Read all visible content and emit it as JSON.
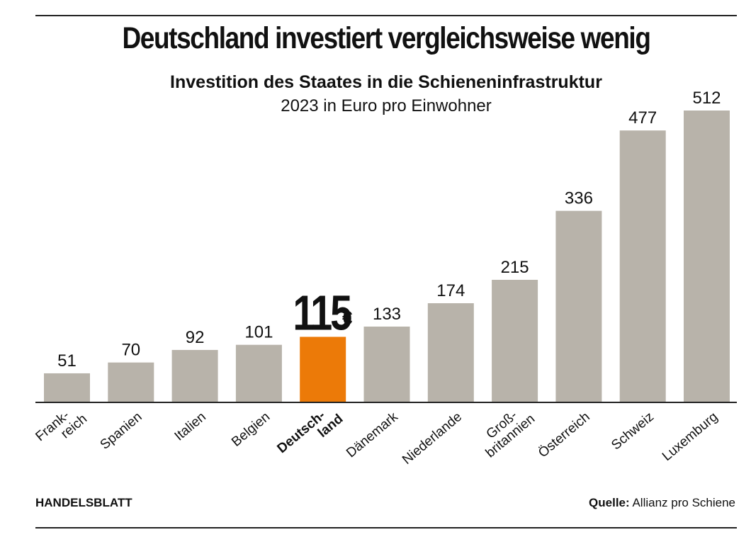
{
  "header": {
    "title": "Deutschland investiert vergleichsweise wenig",
    "subtitle": "Investition des Staates in die Schieneninfrastruktur",
    "unit_line": "2023 in Euro pro Einwohner"
  },
  "footer": {
    "brand": "HANDELSBLATT",
    "source_label": "Quelle:",
    "source_text": "Allianz pro Schiene"
  },
  "colors": {
    "bar": "#b8b3aa",
    "highlight": "#ec7a08",
    "axis": "#222222",
    "text": "#111111"
  },
  "chart_data": {
    "type": "bar",
    "categories": [
      [
        "Frank-",
        "reich"
      ],
      [
        "Spanien"
      ],
      [
        "Italien"
      ],
      [
        "Belgien"
      ],
      [
        "Deutsch-",
        "land"
      ],
      [
        "Dänemark"
      ],
      [
        "Niederlande"
      ],
      [
        "Groß-",
        "britannien"
      ],
      [
        "Österreich"
      ],
      [
        "Schweiz"
      ],
      [
        "Luxemburg"
      ]
    ],
    "values": [
      51,
      70,
      92,
      101,
      115,
      133,
      174,
      215,
      336,
      477,
      512
    ],
    "value_labels": [
      "51",
      "70",
      "92",
      "101",
      "115",
      "133",
      "174",
      "215",
      "336",
      "477",
      "512"
    ],
    "highlight_index": 4,
    "highlight_label": "115",
    "highlight_unit": "€",
    "ylim": [
      0,
      512
    ],
    "grid": false,
    "legend": "none"
  }
}
